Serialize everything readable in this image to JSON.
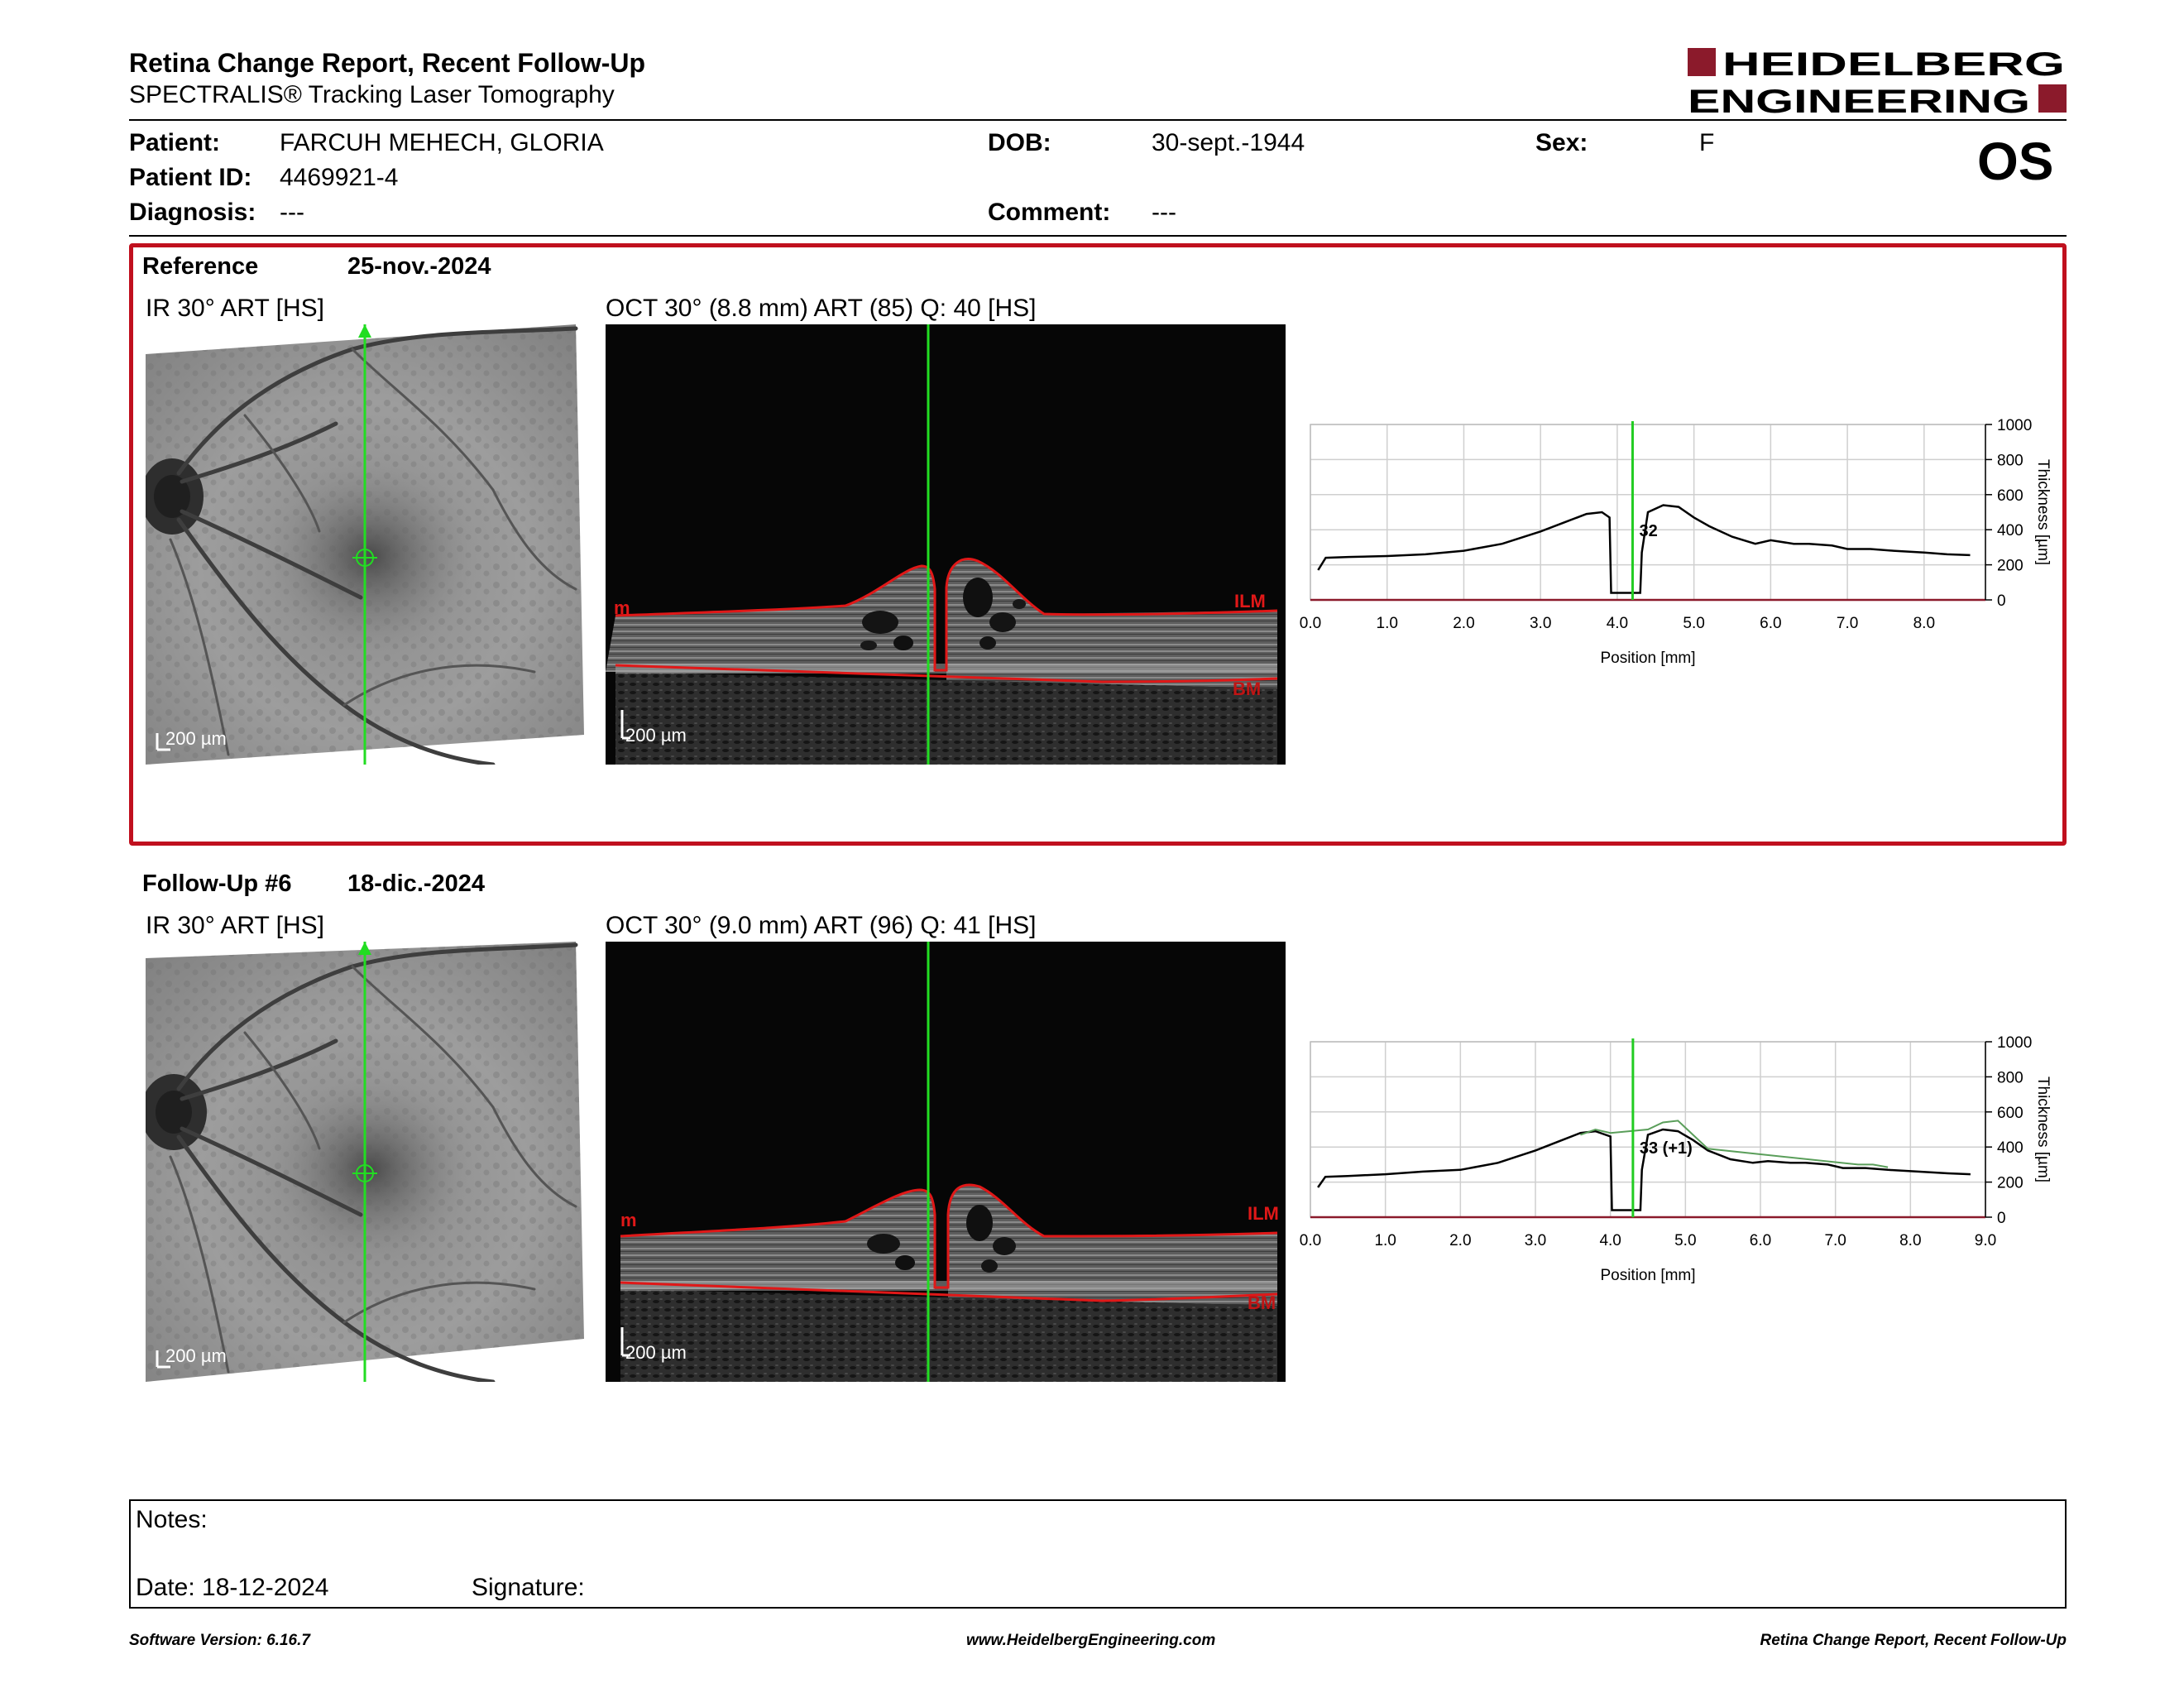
{
  "header": {
    "title": "Retina Change Report, Recent Follow-Up",
    "subtitle": "SPECTRALIS® Tracking Laser Tomography",
    "logo_line1": "HEIDELBERG",
    "logo_line2": "ENGINEERING",
    "brand_color": "#8b1a2b"
  },
  "patient": {
    "patient_label": "Patient:",
    "patient_value": "FARCUH MEHECH, GLORIA",
    "id_label": "Patient ID:",
    "id_value": "4469921-4",
    "diagnosis_label": "Diagnosis:",
    "diagnosis_value": "---",
    "dob_label": "DOB:",
    "dob_value": "30-sept.-1944",
    "comment_label": "Comment:",
    "comment_value": "---",
    "sex_label": "Sex:",
    "sex_value": "F",
    "eye": "OS"
  },
  "reference": {
    "label": "Reference",
    "date": "25-nov.-2024",
    "ir_caption": "IR 30° ART [HS]",
    "oct_caption": "OCT 30° (8.8 mm) ART (85) Q: 40 [HS]",
    "ir_scale": "200 µm",
    "oct_scale": "200 µm",
    "ilm_label": "ILM",
    "bm_label": "BM",
    "left_tag": "m",
    "border_color": "#c0101e"
  },
  "followup": {
    "label": "Follow-Up #6",
    "date": "18-dic.-2024",
    "ir_caption": "IR 30° ART [HS]",
    "oct_caption": "OCT 30° (9.0 mm) ART (96) Q: 41 [HS]",
    "ir_scale": "200 µm",
    "oct_scale": "200 µm",
    "ilm_label": "ILM",
    "bm_label": "BM",
    "left_tag": "m"
  },
  "chart_data": [
    {
      "type": "line",
      "xlabel": "Position [mm]",
      "ylabel": "Thickness [µm]",
      "xlim": [
        0,
        8.8
      ],
      "ylim": [
        0,
        1000
      ],
      "x_ticks": [
        "0.0",
        "1.0",
        "2.0",
        "3.0",
        "4.0",
        "5.0",
        "6.0",
        "7.0",
        "8.0"
      ],
      "y_ticks": [
        "0",
        "200",
        "400",
        "600",
        "800",
        "1000"
      ],
      "cursor_x": 4.2,
      "annotation": "32",
      "grid": true,
      "series": [
        {
          "color": "#000000",
          "x": [
            0.1,
            0.2,
            0.5,
            1.0,
            1.5,
            2.0,
            2.5,
            3.0,
            3.3,
            3.6,
            3.8,
            3.9,
            3.92,
            4.0,
            4.3,
            4.32,
            4.4,
            4.6,
            4.8,
            5.0,
            5.2,
            5.5,
            5.8,
            6.0,
            6.3,
            6.5,
            6.8,
            7.0,
            7.3,
            7.6,
            8.0,
            8.3,
            8.6
          ],
          "y": [
            170,
            240,
            245,
            250,
            260,
            280,
            320,
            390,
            440,
            490,
            500,
            470,
            40,
            40,
            40,
            270,
            500,
            540,
            530,
            470,
            420,
            360,
            320,
            340,
            320,
            320,
            310,
            290,
            290,
            280,
            270,
            260,
            255
          ]
        }
      ]
    },
    {
      "type": "line",
      "xlabel": "Position [mm]",
      "ylabel": "Thickness [µm]",
      "xlim": [
        0,
        9.0
      ],
      "ylim": [
        0,
        1000
      ],
      "x_ticks": [
        "0.0",
        "1.0",
        "2.0",
        "3.0",
        "4.0",
        "5.0",
        "6.0",
        "7.0",
        "8.0",
        "9.0"
      ],
      "y_ticks": [
        "0",
        "200",
        "400",
        "600",
        "800",
        "1000"
      ],
      "cursor_x": 4.3,
      "annotation": "33 (+1)",
      "grid": true,
      "series": [
        {
          "color": "#000000",
          "x": [
            0.1,
            0.2,
            0.5,
            1.0,
            1.5,
            2.0,
            2.5,
            3.0,
            3.3,
            3.6,
            3.8,
            4.0,
            4.02,
            4.1,
            4.4,
            4.42,
            4.5,
            4.7,
            4.9,
            5.1,
            5.3,
            5.6,
            5.9,
            6.1,
            6.4,
            6.6,
            6.9,
            7.1,
            7.4,
            7.7,
            8.1,
            8.5,
            8.8
          ],
          "y": [
            170,
            230,
            235,
            245,
            260,
            270,
            310,
            380,
            430,
            480,
            490,
            460,
            40,
            40,
            40,
            270,
            470,
            500,
            490,
            440,
            380,
            330,
            310,
            320,
            310,
            310,
            300,
            280,
            280,
            270,
            260,
            250,
            245
          ]
        },
        {
          "color": "#5a9e5a",
          "x": [
            3.6,
            3.8,
            4.0,
            4.5,
            4.7,
            4.9,
            5.1,
            5.3,
            7.3,
            7.5,
            7.7
          ],
          "y": [
            470,
            500,
            480,
            500,
            540,
            550,
            470,
            390,
            300,
            300,
            285
          ]
        }
      ]
    }
  ],
  "notes": {
    "notes_label": "Notes:",
    "date_label": "Date: 18-12-2024",
    "signature_label": "Signature:"
  },
  "footer": {
    "software": "Software Version: 6.16.7",
    "website": "www.HeidelbergEngineering.com",
    "report_name": "Retina Change Report, Recent Follow-Up"
  }
}
